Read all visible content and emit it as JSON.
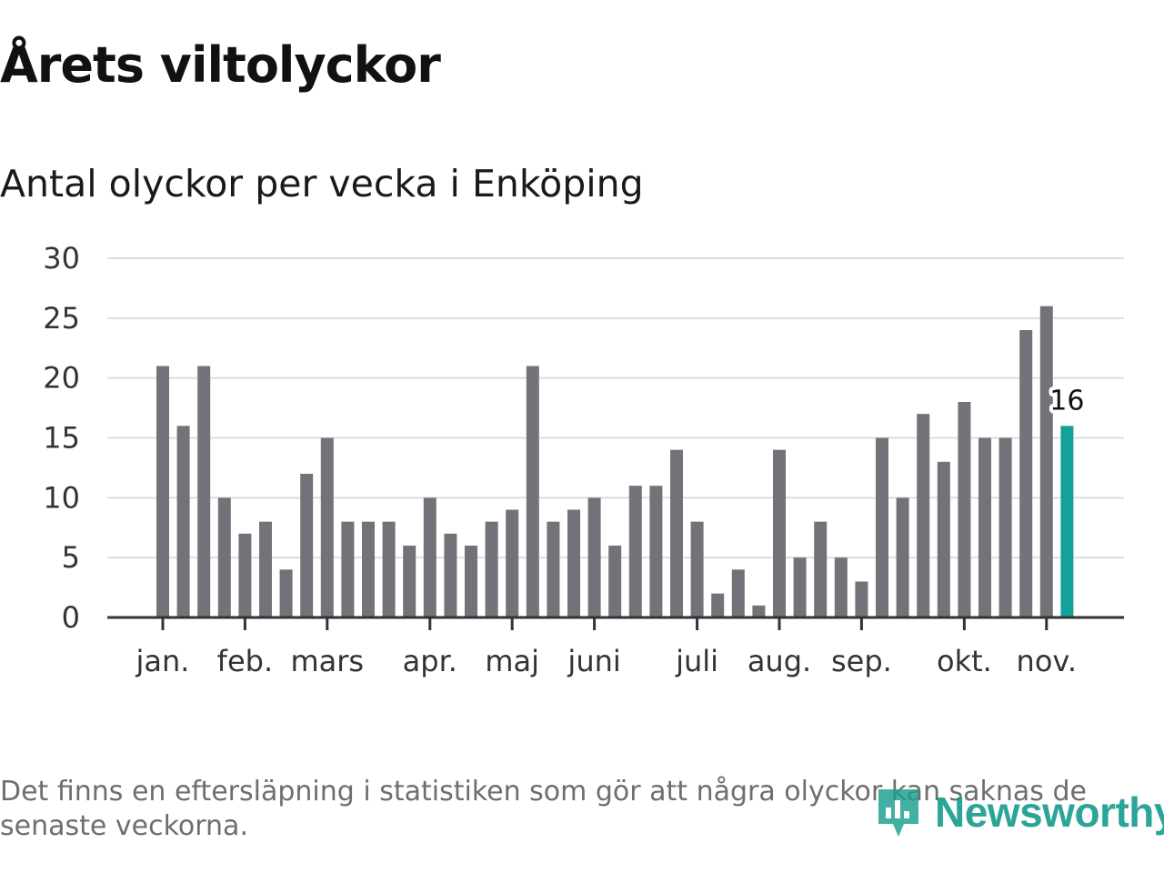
{
  "title": "Årets viltolyckor",
  "subtitle": "Antal olyckor per vecka i Enköping",
  "footnote": "Det finns en eftersläpning i statistiken som gör att några olyckor kan saknas de senaste veckorna.",
  "logo": {
    "text": "Newsworthy",
    "icon": "bar-chart-pin-icon"
  },
  "colors": {
    "bar": "#737278",
    "highlight": "#14a19a",
    "grid": "#dddddd",
    "axis": "#333333",
    "logo": "#1a9e8f"
  },
  "chart_data": {
    "type": "bar",
    "title": "Årets viltolyckor",
    "subtitle": "Antal olyckor per vecka i Enköping",
    "xlabel": "",
    "ylabel": "",
    "ylim": [
      0,
      30
    ],
    "yticks": [
      0,
      5,
      10,
      15,
      20,
      25,
      30
    ],
    "grid": true,
    "values": [
      21,
      16,
      21,
      10,
      7,
      8,
      4,
      12,
      15,
      8,
      8,
      8,
      6,
      10,
      7,
      6,
      8,
      9,
      21,
      8,
      9,
      10,
      6,
      11,
      11,
      14,
      8,
      2,
      4,
      1,
      14,
      5,
      8,
      5,
      3,
      15,
      10,
      17,
      13,
      18,
      15,
      15,
      24,
      26,
      16
    ],
    "highlight_index": 44,
    "highlight_label": "16",
    "month_ticks": [
      {
        "label": "jan.",
        "week_pos": 0
      },
      {
        "label": "feb.",
        "week_pos": 4
      },
      {
        "label": "mars",
        "week_pos": 8
      },
      {
        "label": "apr.",
        "week_pos": 13
      },
      {
        "label": "maj",
        "week_pos": 17
      },
      {
        "label": "juni",
        "week_pos": 21
      },
      {
        "label": "juli",
        "week_pos": 26
      },
      {
        "label": "aug.",
        "week_pos": 30
      },
      {
        "label": "sep.",
        "week_pos": 34
      },
      {
        "label": "okt.",
        "week_pos": 39
      },
      {
        "label": "nov.",
        "week_pos": 43
      }
    ]
  }
}
